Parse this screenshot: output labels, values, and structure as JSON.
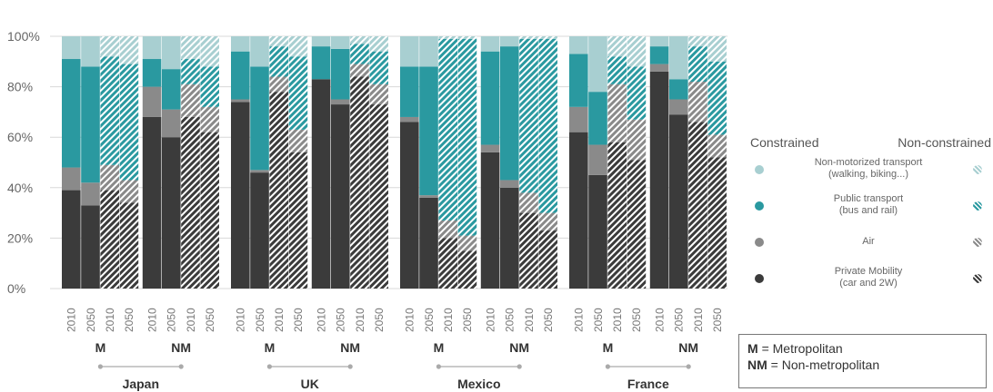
{
  "chart_data": {
    "type": "bar",
    "stacked": true,
    "percent_axis": true,
    "yticks": [
      "0%",
      "20%",
      "40%",
      "60%",
      "80%",
      "100%"
    ],
    "ylim": [
      0,
      100
    ],
    "segments": [
      "Private Mobility",
      "Air",
      "Public transport",
      "Non-motorized transport"
    ],
    "countries": [
      {
        "name": "Japan",
        "bars": [
          {
            "group": "M",
            "type": "c",
            "year": "2010",
            "values": [
              39,
              9,
              43,
              9
            ]
          },
          {
            "group": "M",
            "type": "c",
            "year": "2050",
            "values": [
              33,
              9,
              46,
              12
            ]
          },
          {
            "group": "M",
            "type": "n",
            "year": "2010",
            "values": [
              39,
              10,
              43,
              8
            ]
          },
          {
            "group": "M",
            "type": "n",
            "year": "2050",
            "values": [
              34,
              9,
              46,
              11
            ]
          },
          {
            "group": "NM",
            "type": "c",
            "year": "2010",
            "values": [
              68,
              12,
              11,
              9
            ]
          },
          {
            "group": "NM",
            "type": "c",
            "year": "2050",
            "values": [
              60,
              11,
              16,
              13
            ]
          },
          {
            "group": "NM",
            "type": "n",
            "year": "2010",
            "values": [
              68,
              13,
              10,
              9
            ]
          },
          {
            "group": "NM",
            "type": "n",
            "year": "2050",
            "values": [
              62,
              10,
              16,
              12
            ]
          }
        ]
      },
      {
        "name": "UK",
        "bars": [
          {
            "group": "M",
            "type": "c",
            "year": "2010",
            "values": [
              74,
              1,
              19,
              6
            ]
          },
          {
            "group": "M",
            "type": "c",
            "year": "2050",
            "values": [
              46,
              1,
              41,
              12
            ]
          },
          {
            "group": "M",
            "type": "n",
            "year": "2010",
            "values": [
              78,
              6,
              12,
              4
            ]
          },
          {
            "group": "M",
            "type": "n",
            "year": "2050",
            "values": [
              54,
              9,
              29,
              8
            ]
          },
          {
            "group": "NM",
            "type": "c",
            "year": "2010",
            "values": [
              83,
              0,
              13,
              4
            ]
          },
          {
            "group": "NM",
            "type": "c",
            "year": "2050",
            "values": [
              73,
              2,
              20,
              5
            ]
          },
          {
            "group": "NM",
            "type": "n",
            "year": "2010",
            "values": [
              84,
              5,
              8,
              3
            ]
          },
          {
            "group": "NM",
            "type": "n",
            "year": "2050",
            "values": [
              73,
              8,
              13,
              6
            ]
          }
        ]
      },
      {
        "name": "Mexico",
        "bars": [
          {
            "group": "M",
            "type": "c",
            "year": "2010",
            "values": [
              66,
              2,
              20,
              12
            ]
          },
          {
            "group": "M",
            "type": "c",
            "year": "2050",
            "values": [
              36,
              1,
              51,
              12
            ]
          },
          {
            "group": "M",
            "type": "n",
            "year": "2010",
            "values": [
              20,
              7,
              72,
              1
            ]
          },
          {
            "group": "M",
            "type": "n",
            "year": "2050",
            "values": [
              15,
              6,
              78,
              1
            ]
          },
          {
            "group": "NM",
            "type": "c",
            "year": "2010",
            "values": [
              54,
              3,
              37,
              6
            ]
          },
          {
            "group": "NM",
            "type": "c",
            "year": "2050",
            "values": [
              40,
              3,
              53,
              4
            ]
          },
          {
            "group": "NM",
            "type": "n",
            "year": "2010",
            "values": [
              30,
              8,
              61,
              1
            ]
          },
          {
            "group": "NM",
            "type": "n",
            "year": "2050",
            "values": [
              23,
              7,
              69,
              1
            ]
          }
        ]
      },
      {
        "name": "France",
        "bars": [
          {
            "group": "M",
            "type": "c",
            "year": "2010",
            "values": [
              62,
              10,
              21,
              7
            ]
          },
          {
            "group": "M",
            "type": "c",
            "year": "2050",
            "values": [
              45,
              12,
              21,
              22
            ]
          },
          {
            "group": "M",
            "type": "n",
            "year": "2010",
            "values": [
              58,
              23,
              11,
              8
            ]
          },
          {
            "group": "M",
            "type": "n",
            "year": "2050",
            "values": [
              51,
              16,
              21,
              12
            ]
          },
          {
            "group": "NM",
            "type": "c",
            "year": "2010",
            "values": [
              86,
              3,
              7,
              4
            ]
          },
          {
            "group": "NM",
            "type": "c",
            "year": "2050",
            "values": [
              69,
              6,
              8,
              17
            ]
          },
          {
            "group": "NM",
            "type": "n",
            "year": "2010",
            "values": [
              66,
              16,
              14,
              4
            ]
          },
          {
            "group": "NM",
            "type": "n",
            "year": "2050",
            "values": [
              52,
              9,
              29,
              10
            ]
          }
        ]
      }
    ],
    "colors": {
      "Private Mobility": "#3b3b3b",
      "Air": "#8a8a8a",
      "Public transport": "#2a99a0",
      "Non-motorized transport": "#a8cfd1"
    }
  },
  "legend": {
    "constrained": "Constrained",
    "non_constrained": "Non-constrained",
    "items": [
      {
        "line1": "Non-motorized transport",
        "line2": "(walking, biking...)",
        "icon": "non-motorized-icon",
        "color": "#a8cfd1"
      },
      {
        "line1": "Public transport",
        "line2": "(bus and rail)",
        "icon": "public-transport-icon",
        "color": "#2a99a0"
      },
      {
        "line1": "Air",
        "line2": "",
        "icon": "air-icon",
        "color": "#8a8a8a"
      },
      {
        "line1": "Private Mobility",
        "line2": "(car and 2W)",
        "icon": "private-mobility-icon",
        "color": "#3b3b3b"
      }
    ]
  },
  "note": {
    "m_key": "M",
    "m_text": "= Metropolitan",
    "nm_key": "NM",
    "nm_text": "= Non-metropolitan"
  }
}
